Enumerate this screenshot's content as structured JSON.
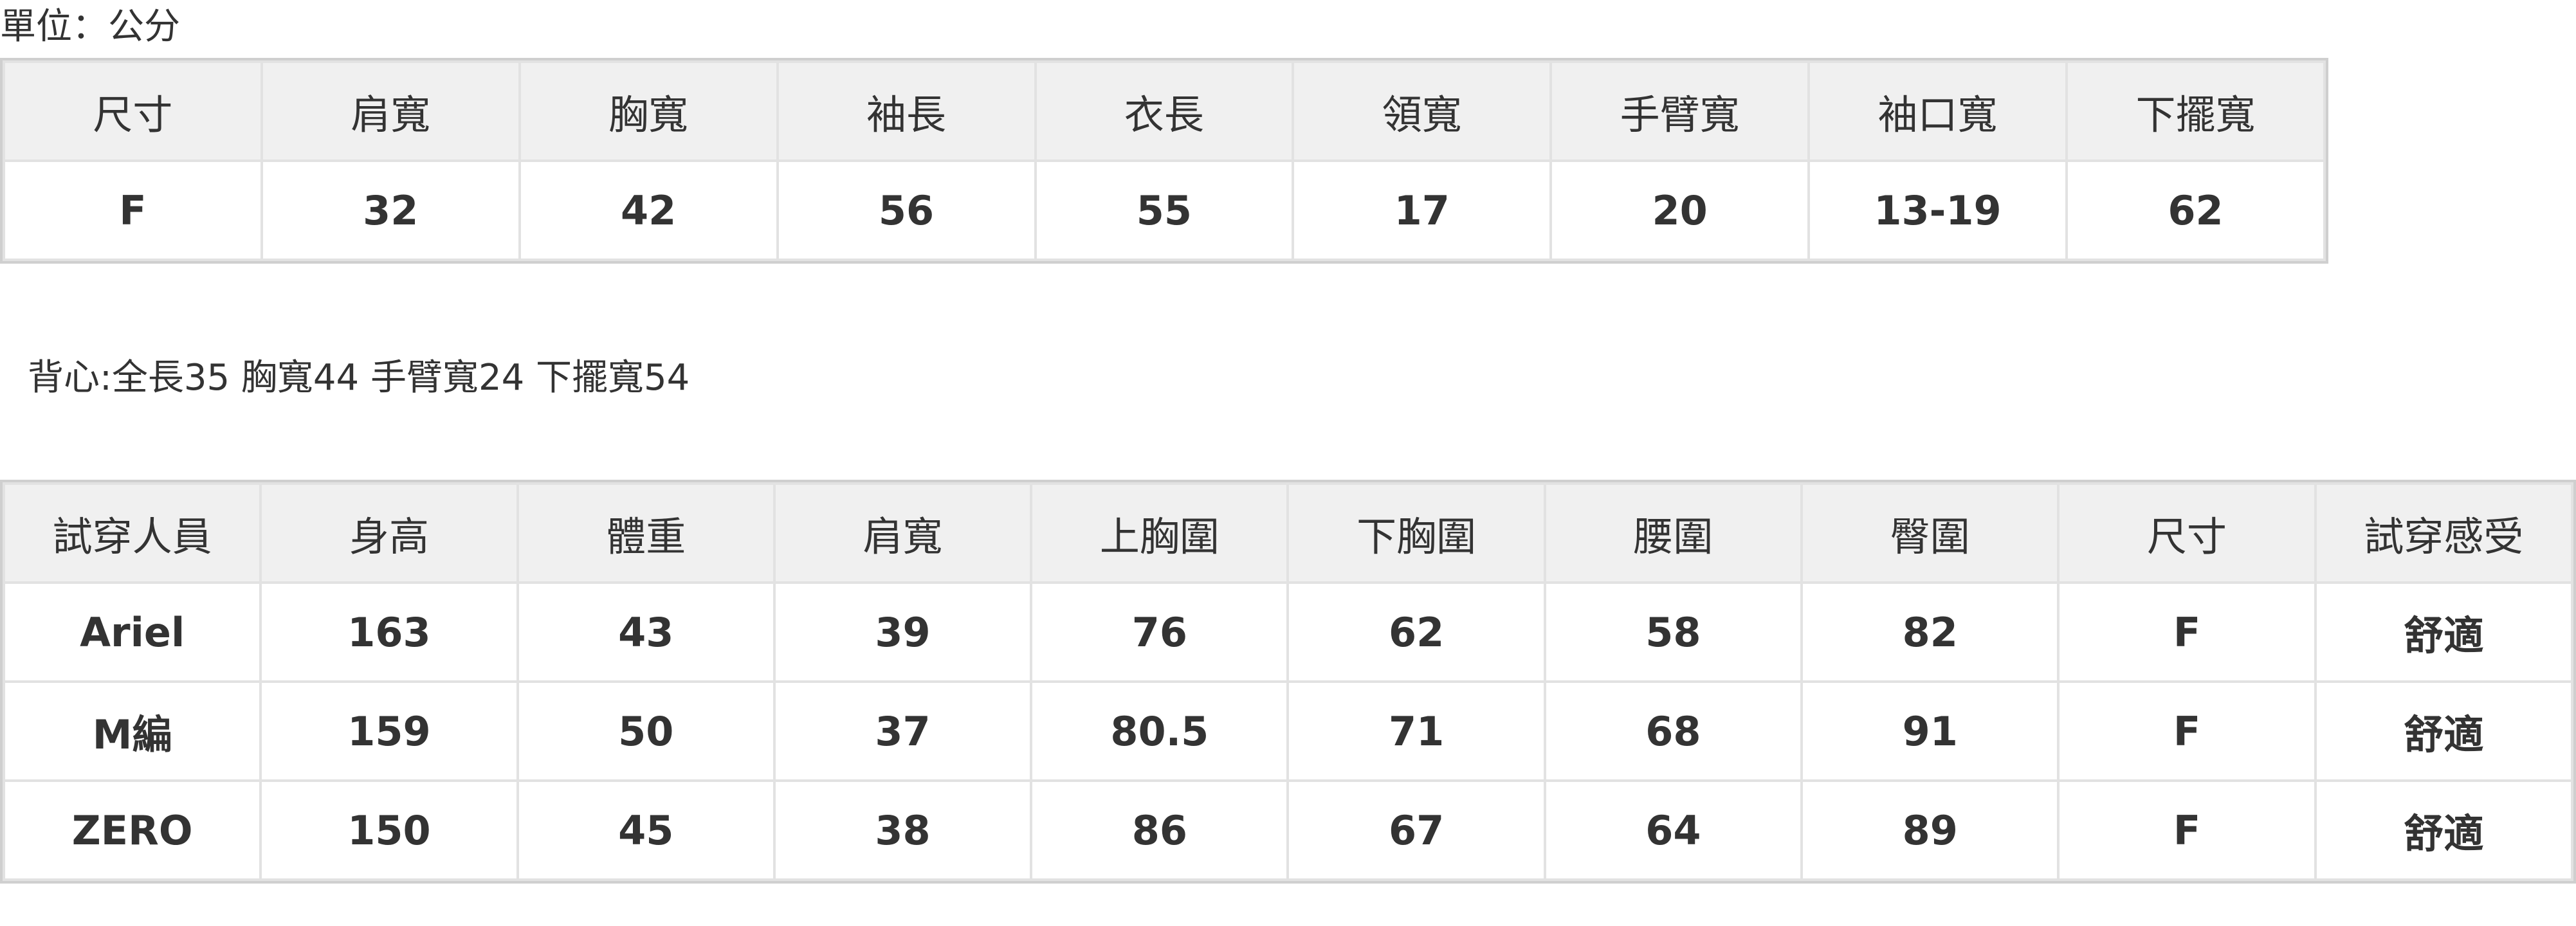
{
  "unit_label": "單位：公分",
  "size_table": {
    "headers": [
      "尺寸",
      "肩寬",
      "胸寬",
      "袖長",
      "衣長",
      "領寬",
      "手臂寬",
      "袖口寬",
      "下擺寬"
    ],
    "rows": [
      [
        "F",
        "32",
        "42",
        "56",
        "55",
        "17",
        "20",
        "13-19",
        "62"
      ]
    ]
  },
  "vest_note": "背心:全長35 胸寬44 手臂寬24 下擺寬54",
  "fitting_table": {
    "headers": [
      "試穿人員",
      "身高",
      "體重",
      "肩寬",
      "上胸圍",
      "下胸圍",
      "腰圍",
      "臀圍",
      "尺寸",
      "試穿感受"
    ],
    "rows": [
      [
        "Ariel",
        "163",
        "43",
        "39",
        "76",
        "62",
        "58",
        "82",
        "F",
        "舒適"
      ],
      [
        "M編",
        "159",
        "50",
        "37",
        "80.5",
        "71",
        "68",
        "91",
        "F",
        "舒適"
      ],
      [
        "ZERO",
        "150",
        "45",
        "38",
        "86",
        "67",
        "64",
        "89",
        "F",
        "舒適"
      ]
    ]
  }
}
